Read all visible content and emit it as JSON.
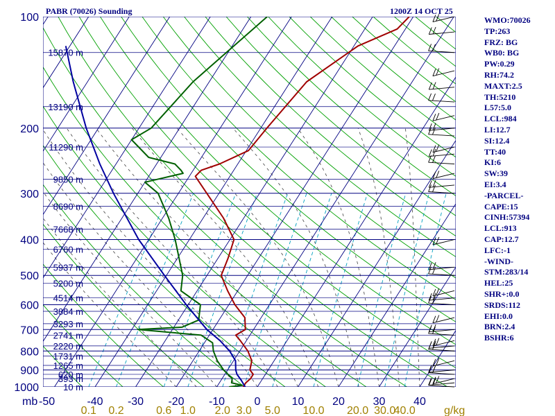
{
  "header": {
    "station": "PABR (70026) Sounding",
    "time": "1200Z 14 OCT 25"
  },
  "sidebar": {
    "lines": [
      "WMO:70026",
      "TP:263",
      "FRZ: BG",
      "WB0: BG",
      "PW:0.29",
      "RH:74.2",
      "MAXT:2.5",
      "TH:5210",
      "L57:5.0",
      "LCL:984",
      "LI:12.7",
      "SI:12.4",
      "TT:40",
      "KI:6",
      "SW:39",
      "EI:3.4",
      "-PARCEL-",
      "CAPE:15",
      "CINH:57394",
      "LCL:913",
      "CAP:12.7",
      "LFC:-1",
      "-WIND-",
      "STM:283/14",
      "HEL:25",
      "SHR+:0.0",
      "SRDS:112",
      "EHI:0.0",
      "BRN:2.4",
      "BSHR:6"
    ]
  },
  "chart_data": {
    "type": "line",
    "subtype": "skew-t log-p",
    "title": "PABR (70026) Sounding",
    "subtitle": "1200Z 14 OCT 25",
    "ylabel": "mb",
    "xlabel": "",
    "ylim": [
      1000,
      100
    ],
    "xlim": [
      -50,
      50
    ],
    "pressure_ticks": [
      100,
      200,
      300,
      400,
      500,
      600,
      700,
      800,
      900,
      1000
    ],
    "pressure_tick_labels": [
      "100",
      "200",
      "300",
      "400",
      "500",
      "600",
      "700",
      "800",
      "900",
      "1000"
    ],
    "temp_ticks": [
      -40,
      -30,
      -20,
      -10,
      0,
      10,
      20,
      30,
      40
    ],
    "temp_tick_labels": [
      "-40",
      "-30",
      "-20",
      "-10",
      "0",
      "10",
      "20",
      "30",
      "40"
    ],
    "temp_axis_first_label": "-50",
    "mixing_ratio_labels": [
      {
        "value": 0.1,
        "label": "0.1"
      },
      {
        "value": 0.2,
        "label": "0.2"
      },
      {
        "value": 0.6,
        "label": "0.6"
      },
      {
        "value": 1.0,
        "label": "1.0"
      },
      {
        "value": 2.0,
        "label": "2.0"
      },
      {
        "value": 3.0,
        "label": "3.0"
      },
      {
        "value": 5.0,
        "label": "5.0"
      },
      {
        "value": 10.0,
        "label": "10.0"
      },
      {
        "value": 20.0,
        "label": "20.0"
      },
      {
        "value": 30.0,
        "label": "30.0"
      },
      {
        "value": 40.0,
        "label": "40.0"
      }
    ],
    "mixing_ratio_unit": "g/kg",
    "height_levels": [
      {
        "p": 1000,
        "label": "10 m"
      },
      {
        "p": 950,
        "label": "393 m"
      },
      {
        "p": 925,
        "label": "620 m"
      },
      {
        "p": 875,
        "label": "1265 m"
      },
      {
        "p": 825,
        "label": "1731 m"
      },
      {
        "p": 775,
        "label": "2220 m"
      },
      {
        "p": 725,
        "label": "2741 m"
      },
      {
        "p": 675,
        "label": "3293 m"
      },
      {
        "p": 625,
        "label": "3884 m"
      },
      {
        "p": 575,
        "label": "4514 m"
      },
      {
        "p": 525,
        "label": "5200 m"
      },
      {
        "p": 475,
        "label": "5937 m"
      },
      {
        "p": 425,
        "label": "6760 m"
      },
      {
        "p": 375,
        "label": "7668 m"
      },
      {
        "p": 325,
        "label": "8690 m"
      },
      {
        "p": 275,
        "label": "9850 m"
      },
      {
        "p": 225,
        "label": "11290 m"
      },
      {
        "p": 175,
        "label": "13190 m"
      },
      {
        "p": 125,
        "label": "15870 m"
      }
    ],
    "series": [
      {
        "name": "",
        "color": "#a00000",
        "points": [
          {
            "p": 1000,
            "t": -3.5
          },
          {
            "p": 975,
            "t": -3.5
          },
          {
            "p": 950,
            "t": -3.0
          },
          {
            "p": 925,
            "t": -3.0
          },
          {
            "p": 900,
            "t": -4.5
          },
          {
            "p": 850,
            "t": -5.5
          },
          {
            "p": 800,
            "t": -8.0
          },
          {
            "p": 750,
            "t": -11.5
          },
          {
            "p": 725,
            "t": -13.5
          },
          {
            "p": 700,
            "t": -12.0
          },
          {
            "p": 650,
            "t": -14.0
          },
          {
            "p": 600,
            "t": -18.5
          },
          {
            "p": 550,
            "t": -22.5
          },
          {
            "p": 500,
            "t": -26.5
          },
          {
            "p": 450,
            "t": -27.5
          },
          {
            "p": 400,
            "t": -29.0
          },
          {
            "p": 350,
            "t": -35.0
          },
          {
            "p": 300,
            "t": -43.0
          },
          {
            "p": 270,
            "t": -48.5
          },
          {
            "p": 260,
            "t": -48.0
          },
          {
            "p": 250,
            "t": -44.5
          },
          {
            "p": 230,
            "t": -39.5
          },
          {
            "p": 200,
            "t": -38.5
          },
          {
            "p": 150,
            "t": -36.0
          },
          {
            "p": 120,
            "t": -29.0
          },
          {
            "p": 108,
            "t": -22.0
          },
          {
            "p": 100,
            "t": -21.0
          }
        ]
      },
      {
        "name": "",
        "color": "#006000",
        "points": [
          {
            "p": 1000,
            "t": -7.0
          },
          {
            "p": 990,
            "t": -4.0
          },
          {
            "p": 975,
            "t": -7.0
          },
          {
            "p": 950,
            "t": -7.5
          },
          {
            "p": 900,
            "t": -11.0
          },
          {
            "p": 850,
            "t": -14.0
          },
          {
            "p": 800,
            "t": -16.5
          },
          {
            "p": 760,
            "t": -18.0
          },
          {
            "p": 725,
            "t": -22.0
          },
          {
            "p": 700,
            "t": -38.5
          },
          {
            "p": 690,
            "t": -28.0
          },
          {
            "p": 660,
            "t": -25.0
          },
          {
            "p": 600,
            "t": -27.0
          },
          {
            "p": 550,
            "t": -34.0
          },
          {
            "p": 500,
            "t": -36.0
          },
          {
            "p": 400,
            "t": -43.5
          },
          {
            "p": 350,
            "t": -48.5
          },
          {
            "p": 300,
            "t": -55.0
          },
          {
            "p": 280,
            "t": -60.0
          },
          {
            "p": 265,
            "t": -52.0
          },
          {
            "p": 260,
            "t": -53.0
          },
          {
            "p": 250,
            "t": -55.5
          },
          {
            "p": 240,
            "t": -63.0
          },
          {
            "p": 215,
            "t": -70.0
          },
          {
            "p": 200,
            "t": -67.0
          },
          {
            "p": 150,
            "t": -64.0
          },
          {
            "p": 100,
            "t": -56.0
          }
        ]
      },
      {
        "name": "",
        "color": "#0000a0",
        "points": [
          {
            "p": 1000,
            "t": -3.0
          },
          {
            "p": 960,
            "t": -5.0
          },
          {
            "p": 925,
            "t": -7.0
          },
          {
            "p": 900,
            "t": -8.0
          },
          {
            "p": 850,
            "t": -9.5
          },
          {
            "p": 800,
            "t": -12.5
          },
          {
            "p": 750,
            "t": -16.5
          },
          {
            "p": 700,
            "t": -21.5
          },
          {
            "p": 600,
            "t": -30.5
          },
          {
            "p": 500,
            "t": -40.5
          },
          {
            "p": 400,
            "t": -52.5
          },
          {
            "p": 300,
            "t": -66.0
          },
          {
            "p": 250,
            "t": -74.0
          },
          {
            "p": 200,
            "t": -83.0
          },
          {
            "p": 150,
            "t": -93.5
          },
          {
            "p": 120,
            "t": -101.0
          }
        ]
      }
    ],
    "grid": true,
    "legend": "none",
    "colors": {
      "isobar": "#000080",
      "isotherm": "#000080",
      "dry_adiabat": "#00a000",
      "moist_adiabat": "#404040",
      "mixing_ratio": "#00a0c0",
      "axis_label": "#000080",
      "mixing_label": "#a08000",
      "wind_barb": "#000000"
    },
    "wind_profile_pressures": [
      100,
      110,
      125,
      140,
      155,
      170,
      185,
      200,
      210,
      225,
      235,
      250,
      265,
      285,
      300,
      400,
      475,
      500,
      550,
      575,
      600,
      650,
      700,
      725,
      750,
      775,
      800,
      850,
      900,
      925,
      950,
      975,
      1000
    ]
  }
}
